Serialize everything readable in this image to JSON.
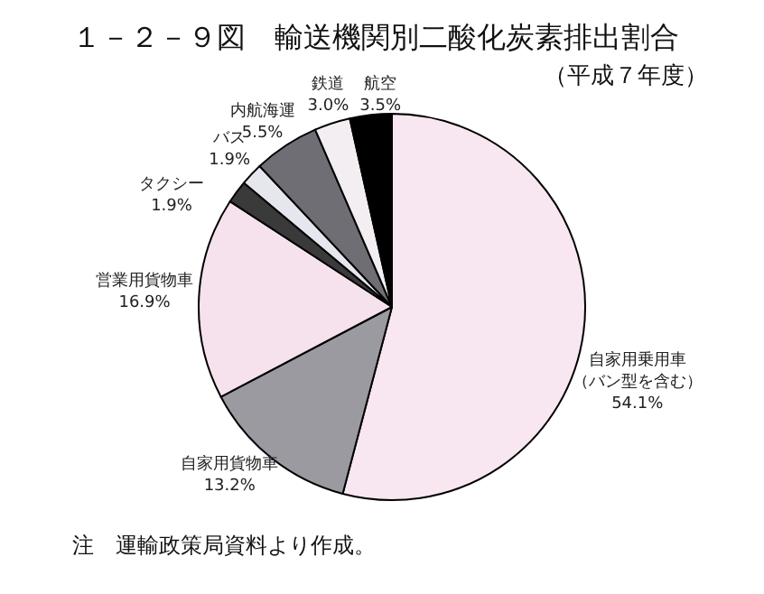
{
  "chart_data": {
    "type": "pie",
    "title": "１－２－９図　輸送機関別二酸化炭素排出割合",
    "subtitle": "（平成７年度）",
    "categories": [
      "自家用乗用車（バン型を含む）",
      "自家用貨物車",
      "営業用貨物車",
      "タクシー",
      "バス",
      "内航海運",
      "鉄道",
      "航空"
    ],
    "values": [
      54.1,
      13.2,
      16.9,
      1.9,
      1.9,
      5.5,
      3.0,
      3.5
    ],
    "colors": [
      "#f8e6f0",
      "#9a9aa0",
      "#f6e2ec",
      "#3a3a3a",
      "#e6e6ee",
      "#6e6e74",
      "#f2eef2",
      "#000000"
    ],
    "value_labels": [
      "54.1%",
      "13.2%",
      "16.9%",
      "1.9%",
      "1.9%",
      "5.5%",
      "3.0%",
      "3.5%"
    ],
    "annotations": [
      "注　運輸政策局資料より作成。"
    ]
  }
}
